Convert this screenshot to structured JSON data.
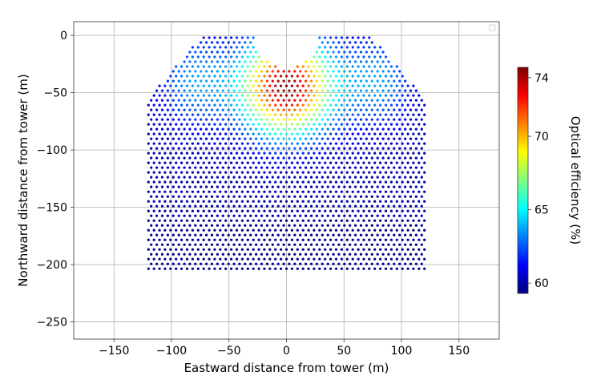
{
  "chart_data": {
    "type": "scatter",
    "title": "",
    "xlabel": "Eastward distance from tower (m)",
    "ylabel": "Northward distance from tower (m)",
    "xlim": [
      -185,
      185
    ],
    "ylim": [
      -265,
      12
    ],
    "xticks": [
      -150,
      -100,
      -50,
      0,
      50,
      100,
      150
    ],
    "yticks": [
      0,
      -50,
      -100,
      -150,
      -200,
      -250
    ],
    "grid": true,
    "legend": "top-right",
    "field": {
      "x_range": [
        -120,
        120
      ],
      "y_range": [
        -207,
        -2
      ],
      "row_spacing_m": 4.2,
      "col_spacing_m": 4.8,
      "cutout_center": [
        0,
        0
      ],
      "cutout_radius_m": 28,
      "corner_x": [
        -73,
        73
      ],
      "edge_x": [
        -120,
        120
      ],
      "edge_y": -55,
      "efficiency_peak_pct": 74.5,
      "efficiency_peak_at": [
        0,
        -45
      ],
      "efficiency_min_pct": 59.5
    },
    "colorbar": {
      "label": "Optical efficiency (%)",
      "range": [
        59.3,
        74.7
      ],
      "ticks": [
        60,
        65,
        70,
        74
      ],
      "colormap": "jet"
    }
  }
}
